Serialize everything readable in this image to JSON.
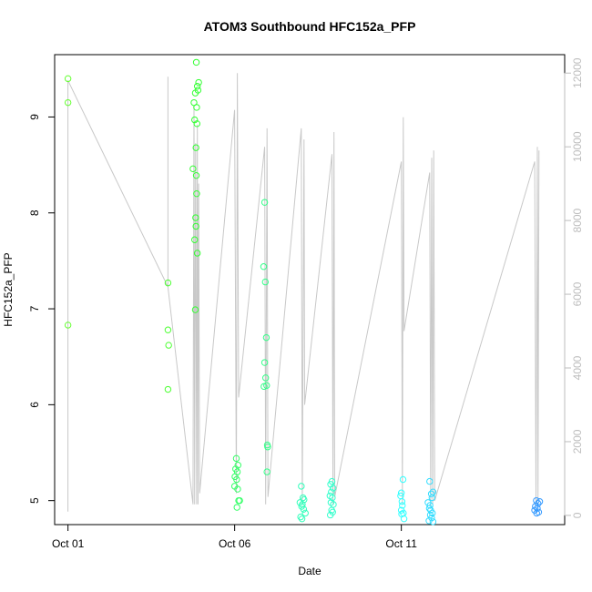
{
  "chart_data": {
    "type": "scatter",
    "title": "ATOM3 Southbound HFC152a_PFP",
    "xlabel": "Date",
    "ylabel": "HFC152a_PFP",
    "x_unit": "day of October",
    "xlim": [
      0.6,
      15.9
    ],
    "ylim": [
      4.75,
      9.65
    ],
    "y2lim": [
      -250,
      12500
    ],
    "x_ticks": [
      {
        "value": 1,
        "label": "Oct 01"
      },
      {
        "value": 6,
        "label": "Oct 06"
      },
      {
        "value": 11,
        "label": "Oct 11"
      }
    ],
    "y_ticks": [
      5,
      6,
      7,
      8,
      9
    ],
    "y2_ticks": [
      0,
      2000,
      4000,
      6000,
      8000,
      10000,
      12000
    ],
    "grid": false,
    "legend": "none",
    "series": [
      {
        "color": "#66ff33",
        "points": [
          [
            1.0,
            9.4
          ],
          [
            1.0,
            9.15
          ],
          [
            1.0,
            6.83
          ]
        ]
      },
      {
        "color": "#4dff33",
        "points": [
          [
            4.0,
            7.27
          ],
          [
            4.0,
            6.78
          ],
          [
            4.02,
            6.62
          ],
          [
            4.0,
            6.16
          ]
        ]
      },
      {
        "color": "#33ff33",
        "points": [
          [
            4.85,
            9.57
          ],
          [
            4.92,
            9.36
          ],
          [
            4.88,
            9.32
          ],
          [
            4.9,
            9.28
          ],
          [
            4.82,
            9.25
          ],
          [
            4.78,
            9.15
          ],
          [
            4.86,
            9.1
          ],
          [
            4.8,
            8.97
          ],
          [
            4.87,
            8.93
          ],
          [
            4.84,
            8.68
          ],
          [
            4.75,
            8.46
          ],
          [
            4.85,
            8.39
          ],
          [
            4.86,
            8.2
          ],
          [
            4.83,
            7.95
          ],
          [
            4.84,
            7.86
          ],
          [
            4.8,
            7.72
          ],
          [
            4.88,
            7.58
          ],
          [
            4.82,
            6.99
          ]
        ]
      },
      {
        "color": "#33ff66",
        "points": [
          [
            6.05,
            5.44
          ],
          [
            6.1,
            5.37
          ],
          [
            6.03,
            5.33
          ],
          [
            6.08,
            5.3
          ],
          [
            6.01,
            5.25
          ],
          [
            6.06,
            5.22
          ],
          [
            6.0,
            5.15
          ],
          [
            6.09,
            5.12
          ],
          [
            6.12,
            5.0
          ],
          [
            6.15,
            5.0
          ],
          [
            6.07,
            4.93
          ]
        ]
      },
      {
        "color": "#33ff88",
        "points": [
          [
            6.9,
            8.11
          ],
          [
            6.87,
            7.44
          ],
          [
            6.92,
            7.28
          ],
          [
            6.95,
            6.7
          ],
          [
            6.9,
            6.44
          ],
          [
            6.93,
            6.28
          ],
          [
            6.96,
            6.2
          ],
          [
            6.88,
            6.19
          ],
          [
            6.98,
            5.58
          ],
          [
            6.99,
            5.56
          ],
          [
            6.97,
            5.3
          ]
        ]
      },
      {
        "color": "#33ffbb",
        "points": [
          [
            8.0,
            5.15
          ],
          [
            8.05,
            5.03
          ],
          [
            8.08,
            5.01
          ],
          [
            7.96,
            4.98
          ],
          [
            8.03,
            4.96
          ],
          [
            8.01,
            4.94
          ],
          [
            8.07,
            4.91
          ],
          [
            8.12,
            4.87
          ],
          [
            7.98,
            4.83
          ],
          [
            8.02,
            4.81
          ]
        ]
      },
      {
        "color": "#33ffcc",
        "points": [
          [
            8.92,
            5.2
          ],
          [
            8.88,
            5.17
          ],
          [
            8.95,
            5.13
          ],
          [
            8.9,
            5.09
          ],
          [
            8.86,
            5.05
          ],
          [
            8.93,
            5.03
          ],
          [
            8.89,
            4.98
          ],
          [
            8.96,
            4.96
          ],
          [
            8.91,
            4.9
          ],
          [
            8.94,
            4.88
          ],
          [
            8.87,
            4.85
          ]
        ]
      },
      {
        "color": "#33ffff",
        "points": [
          [
            11.05,
            5.22
          ],
          [
            11.0,
            5.08
          ],
          [
            10.98,
            5.05
          ],
          [
            11.02,
            4.99
          ],
          [
            11.03,
            4.95
          ],
          [
            11.0,
            4.9
          ],
          [
            11.06,
            4.87
          ],
          [
            11.01,
            4.86
          ],
          [
            11.08,
            4.81
          ]
        ]
      },
      {
        "color": "#33ddff",
        "points": [
          [
            11.85,
            5.2
          ],
          [
            11.95,
            5.09
          ],
          [
            11.9,
            5.07
          ],
          [
            11.92,
            5.03
          ],
          [
            11.8,
            4.98
          ],
          [
            11.86,
            4.95
          ],
          [
            11.84,
            4.92
          ],
          [
            11.88,
            4.9
          ],
          [
            11.93,
            4.87
          ],
          [
            11.87,
            4.85
          ],
          [
            11.91,
            4.82
          ],
          [
            11.83,
            4.79
          ],
          [
            11.95,
            4.78
          ]
        ]
      },
      {
        "color": "#3399ff",
        "points": [
          [
            15.05,
            5.0
          ],
          [
            15.15,
            4.99
          ],
          [
            15.1,
            4.97
          ],
          [
            15.02,
            4.94
          ],
          [
            15.08,
            4.92
          ],
          [
            15.0,
            4.9
          ],
          [
            15.12,
            4.88
          ],
          [
            15.06,
            4.87
          ]
        ]
      }
    ],
    "secondary_series": {
      "color": "#c8c8c8",
      "axis": "right",
      "points": [
        [
          1.0,
          11800
        ],
        [
          1.0,
          100
        ],
        [
          1.0,
          11800
        ],
        [
          4.0,
          6200
        ],
        [
          4.0,
          11900
        ],
        [
          4.0,
          6200
        ],
        [
          4.75,
          300
        ],
        [
          4.78,
          11100
        ],
        [
          4.8,
          300
        ],
        [
          4.83,
          10100
        ],
        [
          4.86,
          300
        ],
        [
          4.88,
          10600
        ],
        [
          4.9,
          300
        ],
        [
          4.92,
          9000
        ],
        [
          4.95,
          600
        ],
        [
          6.0,
          11000
        ],
        [
          6.05,
          600
        ],
        [
          6.08,
          12000
        ],
        [
          6.12,
          3200
        ],
        [
          6.9,
          10000
        ],
        [
          6.93,
          300
        ],
        [
          6.97,
          10500
        ],
        [
          7.0,
          500
        ],
        [
          8.0,
          10500
        ],
        [
          8.03,
          300
        ],
        [
          8.08,
          10200
        ],
        [
          8.1,
          3000
        ],
        [
          8.92,
          9800
        ],
        [
          8.95,
          300
        ],
        [
          8.98,
          10400
        ],
        [
          9.0,
          500
        ],
        [
          11.0,
          9600
        ],
        [
          11.03,
          300
        ],
        [
          11.06,
          10800
        ],
        [
          11.08,
          5000
        ],
        [
          11.85,
          9300
        ],
        [
          11.88,
          200
        ],
        [
          11.91,
          9700
        ],
        [
          11.94,
          300
        ],
        [
          11.97,
          9900
        ],
        [
          12.0,
          400
        ],
        [
          15.0,
          9600
        ],
        [
          15.04,
          300
        ],
        [
          15.08,
          10000
        ],
        [
          15.1,
          400
        ],
        [
          15.13,
          9900
        ]
      ]
    }
  }
}
